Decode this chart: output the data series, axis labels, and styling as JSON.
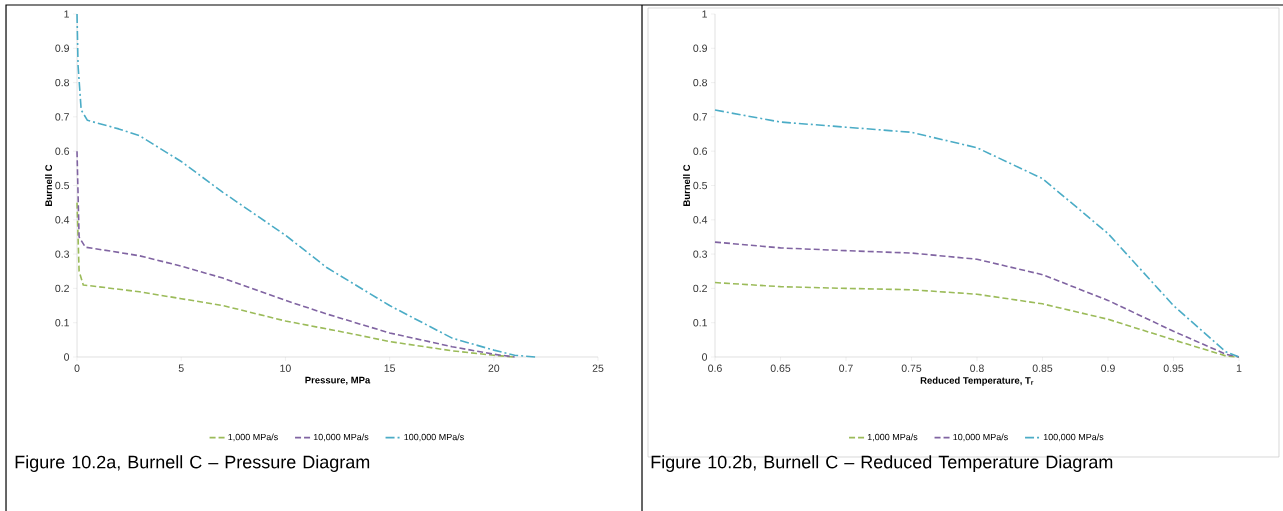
{
  "chart_data": [
    {
      "type": "line",
      "xlabel": "Pressure, MPa",
      "ylabel": "Burnell C",
      "legend": "bottom",
      "xlim": [
        0,
        25
      ],
      "ylim": [
        0,
        1
      ],
      "xticks": [
        0,
        5,
        10,
        15,
        20,
        25
      ],
      "yticks": [
        0,
        0.1,
        0.2,
        0.3,
        0.4,
        0.5,
        0.6,
        0.7,
        0.8,
        0.9,
        1
      ],
      "series": [
        {
          "name": "1,000 MPa/s",
          "color": "#9bbb59",
          "line_style": "dashed",
          "x": [
            0,
            0.1,
            0.3,
            1,
            3,
            5,
            7,
            10,
            13,
            15,
            18,
            20,
            21
          ],
          "values": [
            0.45,
            0.25,
            0.21,
            0.205,
            0.19,
            0.17,
            0.15,
            0.105,
            0.07,
            0.045,
            0.018,
            0.005,
            0
          ]
        },
        {
          "name": "10,000 MPa/s",
          "color": "#8064a2",
          "line_style": "dashed",
          "x": [
            0,
            0.1,
            0.4,
            2,
            3,
            5,
            7,
            10,
            12,
            15,
            18,
            20,
            21
          ],
          "values": [
            0.6,
            0.35,
            0.32,
            0.305,
            0.295,
            0.265,
            0.23,
            0.165,
            0.125,
            0.07,
            0.03,
            0.008,
            0
          ]
        },
        {
          "name": "100,000 MPa/s",
          "color": "#4bacc6",
          "line_style": "dashdot",
          "x": [
            0,
            0.05,
            0.2,
            0.5,
            2,
            3,
            5,
            7,
            10,
            12,
            15,
            18,
            20,
            21,
            22
          ],
          "values": [
            1,
            0.85,
            0.72,
            0.69,
            0.665,
            0.645,
            0.57,
            0.48,
            0.355,
            0.26,
            0.15,
            0.055,
            0.02,
            0.005,
            0
          ]
        }
      ],
      "annotations": [
        "Figure 10.2a, Burnell C – Pressure Diagram"
      ]
    },
    {
      "type": "line",
      "xlabel": "Reduced Temperature, T$_{r}$",
      "ylabel": "Burnell C",
      "legend": "bottom",
      "xlim": [
        0.6,
        1
      ],
      "ylim": [
        0,
        1
      ],
      "xticks": [
        0.6,
        0.65,
        0.7,
        0.75,
        0.8,
        0.85,
        0.9,
        0.95,
        1
      ],
      "yticks": [
        0,
        0.1,
        0.2,
        0.3,
        0.4,
        0.5,
        0.6,
        0.7,
        0.8,
        0.9,
        1
      ],
      "series": [
        {
          "name": "1,000 MPa/s",
          "color": "#9bbb59",
          "line_style": "dashed",
          "x": [
            0.6,
            0.65,
            0.7,
            0.75,
            0.8,
            0.85,
            0.9,
            0.95,
            0.99,
            1
          ],
          "values": [
            0.217,
            0.205,
            0.2,
            0.196,
            0.183,
            0.155,
            0.11,
            0.05,
            0.003,
            0
          ]
        },
        {
          "name": "10,000 MPa/s",
          "color": "#8064a2",
          "line_style": "dashed",
          "x": [
            0.6,
            0.65,
            0.7,
            0.75,
            0.8,
            0.85,
            0.9,
            0.95,
            0.99,
            1
          ],
          "values": [
            0.335,
            0.318,
            0.31,
            0.303,
            0.285,
            0.24,
            0.165,
            0.075,
            0.008,
            0
          ]
        },
        {
          "name": "100,000 MPa/s",
          "color": "#4bacc6",
          "line_style": "dashdot",
          "x": [
            0.6,
            0.65,
            0.7,
            0.75,
            0.8,
            0.85,
            0.9,
            0.95,
            0.99,
            1
          ],
          "values": [
            0.72,
            0.685,
            0.67,
            0.655,
            0.61,
            0.52,
            0.36,
            0.15,
            0.015,
            0
          ]
        }
      ],
      "annotations": [
        "Figure 10.2b, Burnell C – Reduced Temperature Diagram"
      ]
    }
  ]
}
